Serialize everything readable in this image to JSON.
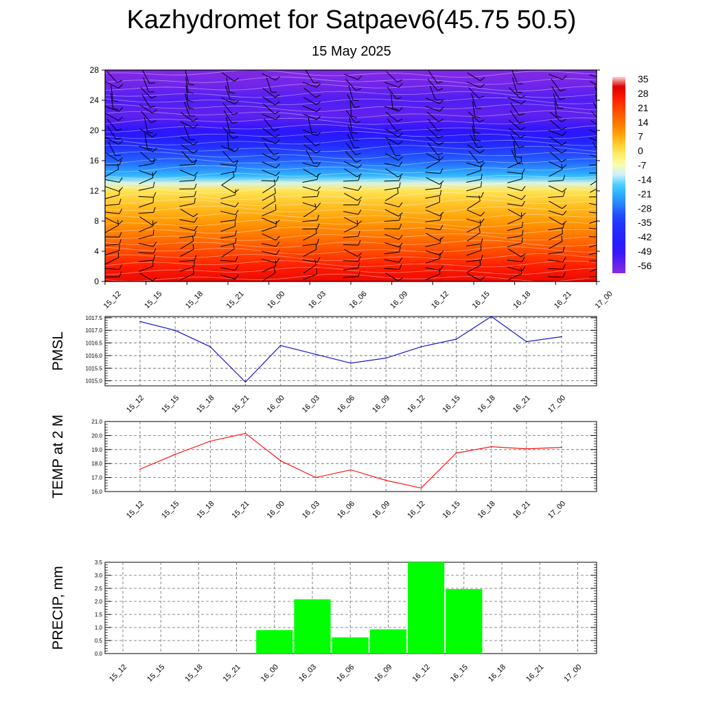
{
  "header": {
    "title": "Kazhydromet for Satpaev6(45.75 50.5)",
    "subtitle": "15 May 2025"
  },
  "chart_data": [
    {
      "type": "heatmap",
      "name": "cross-section",
      "y_ticks": [
        "0",
        "4",
        "8",
        "12",
        "16",
        "20",
        "24",
        "28"
      ],
      "ylim": [
        0,
        28
      ],
      "x_ticks": [
        "15_12",
        "15_15",
        "15_18",
        "15_21",
        "16_00",
        "16_03",
        "16_06",
        "16_09",
        "16_12",
        "16_15",
        "16_18",
        "16_21",
        "17_00"
      ],
      "colorbar_labels": [
        "35",
        "28",
        "21",
        "14",
        "7",
        "0",
        "-7",
        "-14",
        "-21",
        "-28",
        "-35",
        "-42",
        "-49",
        "-56"
      ],
      "colorbar_range": [
        -63,
        35
      ],
      "temperature_by_level": {
        "levels": [
          0,
          2,
          4,
          6,
          8,
          10,
          12,
          13,
          14,
          16,
          18,
          19,
          20,
          22,
          24,
          26,
          28
        ],
        "values": [
          28,
          24,
          18,
          12,
          7,
          3,
          -2,
          -12,
          -22,
          -32,
          -42,
          -48,
          -52,
          -58,
          -56,
          -60,
          -62
        ]
      },
      "colors": {
        "warm_high": "#ff1a00",
        "warm_mid": "#ff8800",
        "neutral": "#ffff99",
        "cool_mid": "#33ccff",
        "cold": "#2222ff",
        "coldest": "#8a2be2"
      }
    },
    {
      "type": "line",
      "ylabel": "PMSL",
      "categories": [
        "15_12",
        "15_15",
        "15_18",
        "15_21",
        "16_00",
        "16_03",
        "16_06",
        "16_09",
        "16_12",
        "16_15",
        "16_18",
        "16_21",
        "17_00"
      ],
      "values": [
        1017.35,
        1017.0,
        1016.35,
        1014.95,
        1016.4,
        1016.05,
        1015.7,
        1015.9,
        1016.35,
        1016.65,
        1017.55,
        1016.55,
        1016.75
      ],
      "ylim": [
        1014.8,
        1017.55
      ],
      "y_ticks": [
        "1015.0",
        "1015.5",
        "1016.0",
        "1016.5",
        "1017.0",
        "1017.5"
      ],
      "color": "#0000cc"
    },
    {
      "type": "line",
      "ylabel": "TEMP at 2 M",
      "categories": [
        "15_12",
        "15_15",
        "15_18",
        "15_21",
        "16_00",
        "16_03",
        "16_06",
        "16_09",
        "16_12",
        "16_15",
        "16_18",
        "16_21",
        "17_00"
      ],
      "values": [
        17.6,
        18.65,
        19.6,
        20.15,
        18.2,
        17.0,
        17.55,
        16.8,
        16.25,
        18.75,
        19.2,
        19.05,
        19.15
      ],
      "ylim": [
        16.0,
        21.0
      ],
      "y_ticks": [
        "16.0",
        "17.0",
        "18.0",
        "19.0",
        "20.0",
        "21.0"
      ],
      "color": "#ff0000"
    },
    {
      "type": "bar",
      "ylabel": "PRECIP, mm",
      "categories": [
        "15_12",
        "15_15",
        "15_18",
        "15_21",
        "16_00",
        "16_03",
        "16_06",
        "16_09",
        "16_12",
        "16_15",
        "16_18",
        "16_21",
        "17_00"
      ],
      "values": [
        0,
        0,
        0,
        0,
        0.9,
        2.08,
        0.62,
        0.93,
        3.5,
        2.47,
        0,
        0,
        0
      ],
      "ylim": [
        0,
        3.5
      ],
      "y_ticks": [
        "0.0",
        "0.5",
        "1.0",
        "1.5",
        "2.0",
        "2.5",
        "3.0",
        "3.5"
      ],
      "color": "#00ff00"
    }
  ]
}
